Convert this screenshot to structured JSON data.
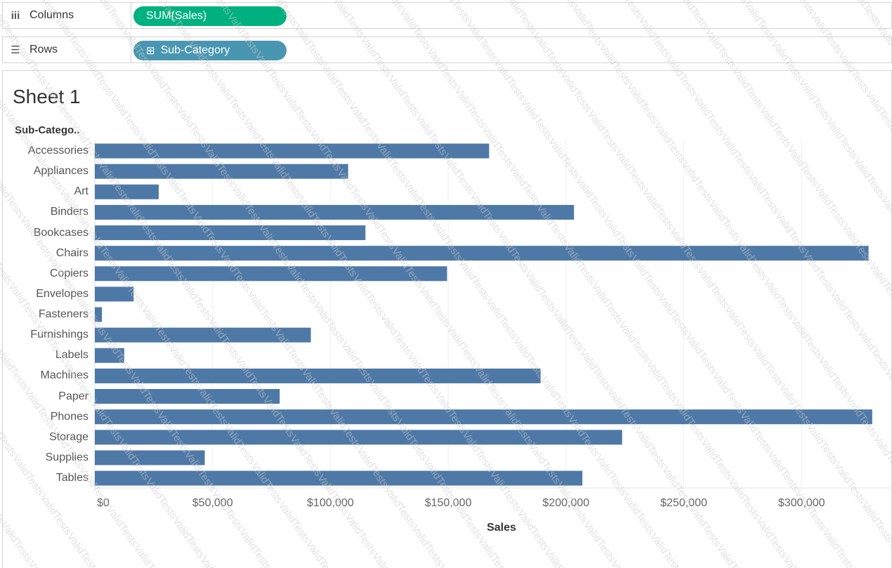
{
  "shelves": {
    "columns": {
      "label": "Columns",
      "icon": "columns-icon",
      "pill": "SUM(Sales)",
      "pill_color": "#00b180"
    },
    "rows": {
      "label": "Rows",
      "icon": "rows-list-icon",
      "pill": "Sub-Category",
      "pill_icon": "expand-plus-icon",
      "pill_color": "#4996b2"
    }
  },
  "watermark": "ValidTests",
  "sheet_title": "Sheet 1",
  "chart_data": {
    "type": "bar",
    "orientation": "horizontal",
    "row_header": "Sub-Catego..",
    "categories": [
      "Accessories",
      "Appliances",
      "Art",
      "Binders",
      "Bookcases",
      "Chairs",
      "Copiers",
      "Envelopes",
      "Fasteners",
      "Furnishings",
      "Labels",
      "Machines",
      "Paper",
      "Phones",
      "Storage",
      "Supplies",
      "Tables"
    ],
    "values": [
      167380,
      107532,
      27119,
      203413,
      114880,
      328449,
      149528,
      16476,
      3024,
      91705,
      12486,
      189239,
      78479,
      330007,
      223844,
      46674,
      206966
    ],
    "xlabel": "Sales",
    "xlim": [
      0,
      337000
    ],
    "xticks": [
      0,
      50000,
      100000,
      150000,
      200000,
      250000,
      300000
    ],
    "xtick_labels": [
      "$0",
      "$50,000",
      "$100,000",
      "$150,000",
      "$200,000",
      "$250,000",
      "$300,000"
    ],
    "bar_color": "#4e79a7",
    "grid": true
  }
}
